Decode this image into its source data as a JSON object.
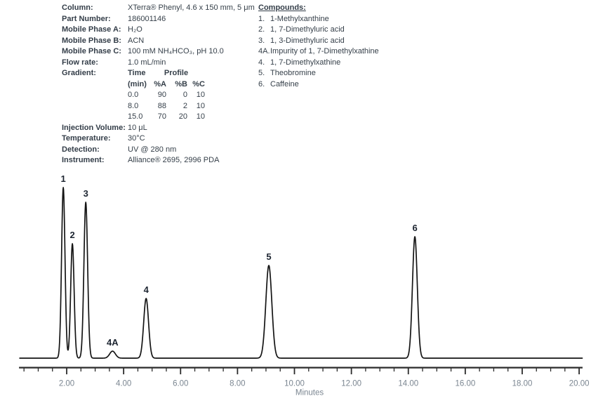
{
  "colors": {
    "text": "#36404a",
    "label_bold": "#333d48",
    "peak_label": "#1d2531",
    "trace": "#141414",
    "axis": "#2b2b2b",
    "tick_label": "#7b8691"
  },
  "method": {
    "rows": [
      {
        "label": "Column:",
        "value": "XTerra® Phenyl, 4.6 x 150 mm, 5 μm"
      },
      {
        "label": "Part Number:",
        "value": "186001146"
      },
      {
        "label": "Mobile Phase A:",
        "value": "H₂O"
      },
      {
        "label": "Mobile Phase B:",
        "value": "ACN"
      },
      {
        "label": "Mobile Phase C:",
        "value": "100 mM NH₄HCO₃, pH 10.0"
      },
      {
        "label": "Flow rate:",
        "value": "1.0 mL/min"
      }
    ],
    "gradient_label": "Gradient:",
    "gradient": {
      "header_time": "Time",
      "header_profile": "Profile",
      "header_cols": [
        "(min)",
        "%A",
        "%B",
        "%C"
      ],
      "rows": [
        [
          "0.0",
          "90",
          "0",
          "10"
        ],
        [
          "8.0",
          "88",
          "2",
          "10"
        ],
        [
          "15.0",
          "70",
          "20",
          "10"
        ]
      ]
    },
    "rows2": [
      {
        "label": "Injection Volume:",
        "value": "10 μL"
      },
      {
        "label": "Temperature:",
        "value": "30°C"
      },
      {
        "label": "Detection:",
        "value": "UV @ 280 nm"
      },
      {
        "label": "Instrument:",
        "value": "Alliance® 2695, 2996 PDA"
      }
    ]
  },
  "compounds": {
    "title": "Compounds:",
    "items": [
      {
        "num": "1.",
        "name": "1-Methylxanthine"
      },
      {
        "num": "2.",
        "name": "1, 7-Dimethyluric acid"
      },
      {
        "num": "3.",
        "name": "1, 3-Dimethyluric acid"
      },
      {
        "num": "4A.",
        "name": "Impurity of 1, 7-Dimethylxathine"
      },
      {
        "num": "4.",
        "name": "1, 7-Dimethylxathine"
      },
      {
        "num": "5.",
        "name": "Theobromine"
      },
      {
        "num": "6.",
        "name": "Caffeine"
      }
    ]
  },
  "chart_data": {
    "type": "line",
    "title": "",
    "xlabel": "Minutes",
    "ylabel": "",
    "x_range": [
      0.35,
      20.12
    ],
    "tick_step_min": 0.5,
    "x_tick_labels": [
      "2.00",
      "4.00",
      "6.00",
      "8.00",
      "10.00",
      "12.00",
      "14.00",
      "16.00",
      "18.00",
      "20.00"
    ],
    "x_tick_label_values": [
      2,
      4,
      6,
      8,
      10,
      12,
      14,
      16,
      18,
      20
    ],
    "grid": false,
    "legend": false,
    "peaks": [
      {
        "label": "1",
        "compound": "1-Methylxanthine",
        "rt_min": 1.88,
        "height_au": 243,
        "sigma_min": 0.06
      },
      {
        "label": "2",
        "compound": "1, 7-Dimethyluric acid",
        "rt_min": 2.2,
        "height_au": 163,
        "sigma_min": 0.06
      },
      {
        "label": "3",
        "compound": "1, 3-Dimethyluric acid",
        "rt_min": 2.67,
        "height_au": 222,
        "sigma_min": 0.065
      },
      {
        "label": "4A",
        "compound": "Impurity of 1, 7-Dimethylxathine",
        "rt_min": 3.61,
        "height_au": 10,
        "sigma_min": 0.1
      },
      {
        "label": "4",
        "compound": "1, 7-Dimethylxathine",
        "rt_min": 4.79,
        "height_au": 85,
        "sigma_min": 0.085
      },
      {
        "label": "5",
        "compound": "Theobromine",
        "rt_min": 9.1,
        "height_au": 132,
        "sigma_min": 0.105
      },
      {
        "label": "6",
        "compound": "Caffeine",
        "rt_min": 14.23,
        "height_au": 173,
        "sigma_min": 0.085
      }
    ]
  }
}
